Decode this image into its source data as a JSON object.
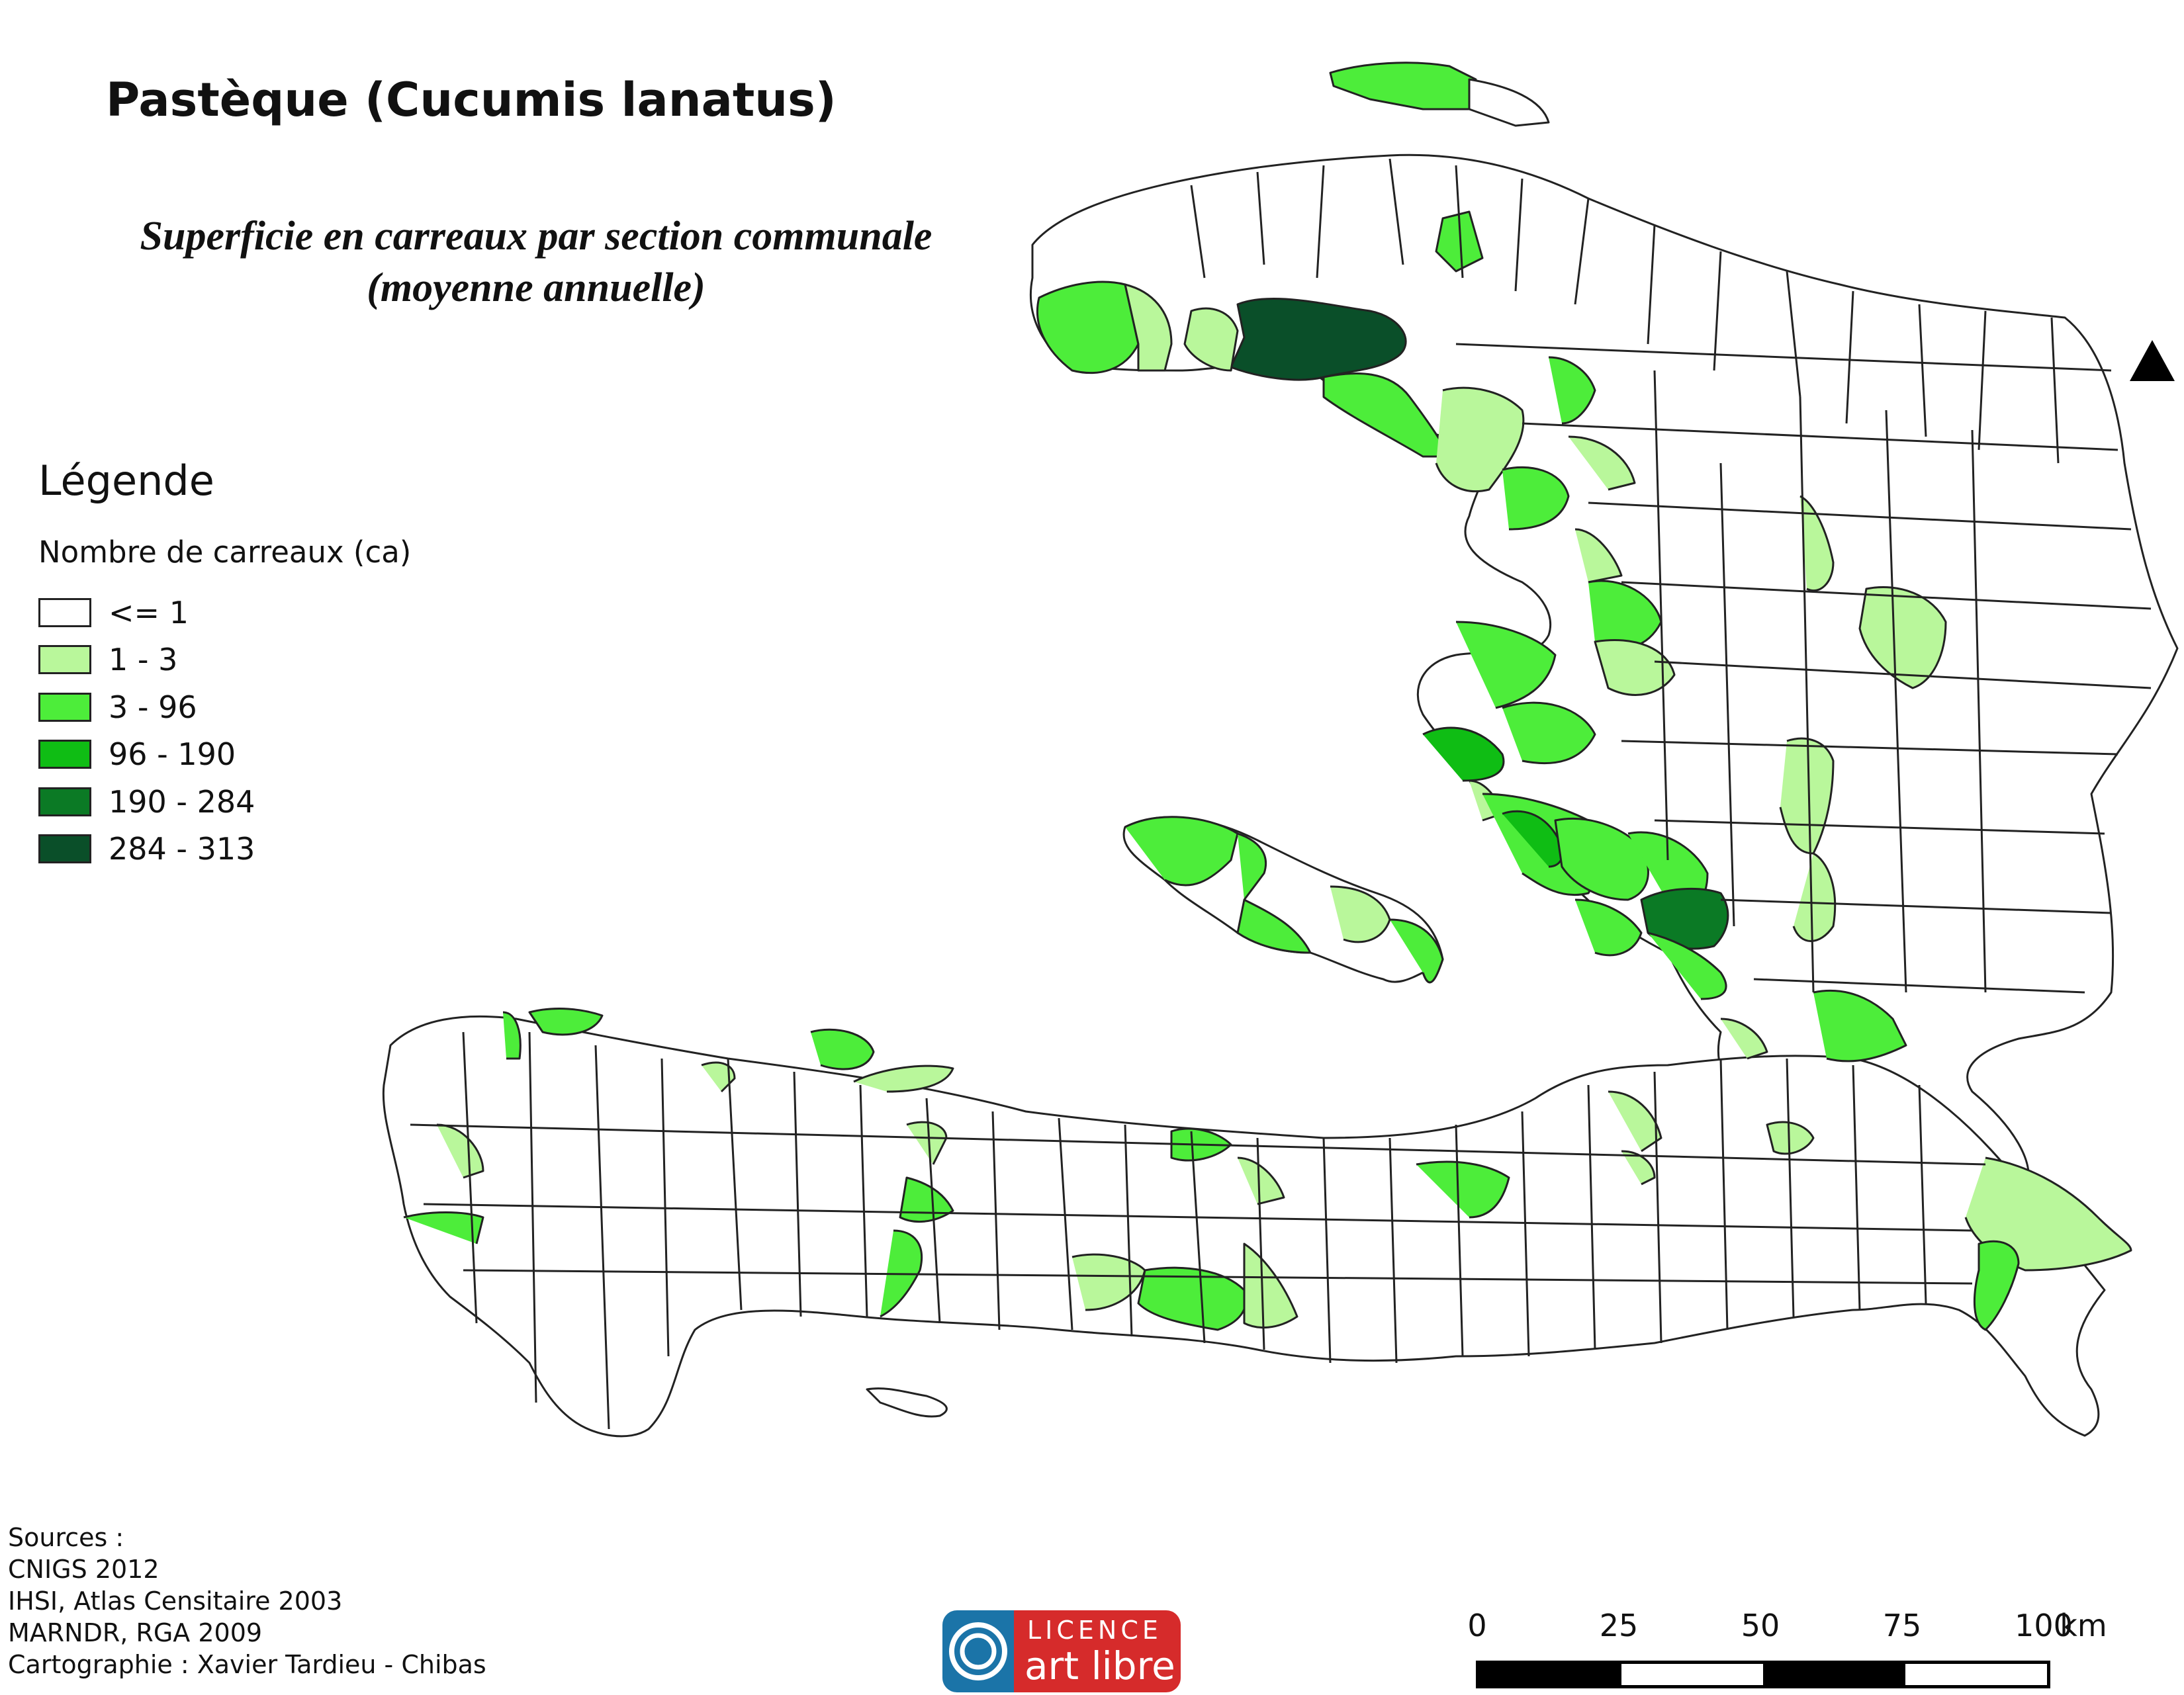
{
  "title": "Pastèque (Cucumis lanatus)",
  "subtitle_line1": "Superficie en carreaux par section communale",
  "subtitle_line2": "(moyenne annuelle)",
  "legend": {
    "heading": "Légende",
    "subheading": "Nombre de carreaux (ca)",
    "classes": [
      {
        "label": "<= 1",
        "color": "#ffffff"
      },
      {
        "label": "1 - 3",
        "color": "#b9f79b"
      },
      {
        "label": "3 - 96",
        "color": "#4ded3a"
      },
      {
        "label": "96 - 190",
        "color": "#0fbd14"
      },
      {
        "label": "190 - 284",
        "color": "#0b7a25"
      },
      {
        "label": "284 - 313",
        "color": "#0a4f29"
      }
    ]
  },
  "sources": {
    "heading": "Sources :",
    "lines": [
      "CNIGS 2012",
      "IHSI, Atlas Censitaire 2003",
      "MARNDR, RGA 2009",
      "Cartographie : Xavier Tardieu - Chibas"
    ]
  },
  "logo": {
    "line1": "LICENCE",
    "line2": "art libre"
  },
  "scale": {
    "labels": [
      "0",
      "25",
      "50",
      "75",
      "100"
    ],
    "unit": "km"
  }
}
